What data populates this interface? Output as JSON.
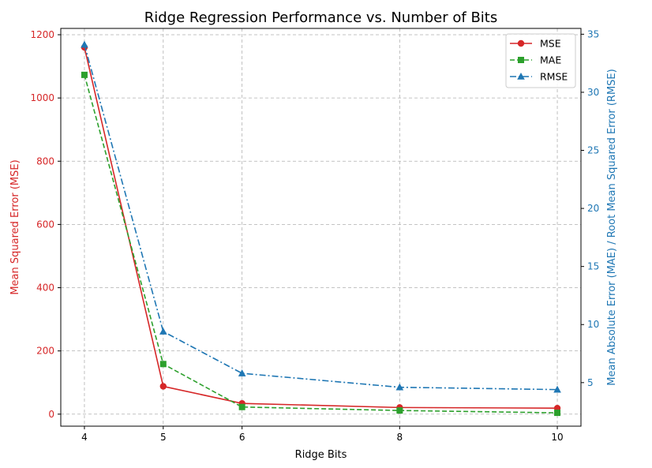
{
  "chart_data": {
    "type": "line",
    "title": "Ridge Regression Performance vs. Number of Bits",
    "xlabel": "Ridge Bits",
    "ylabel_left": "Mean Squared Error (MSE)",
    "ylabel_right": "Mean Absolute Error (MAE) / Root Mean Squared Error (RMSE)",
    "x": [
      4,
      5,
      6,
      8,
      10
    ],
    "xlim": [
      3.7,
      10.3
    ],
    "x_ticks": [
      4,
      5,
      6,
      8,
      10
    ],
    "ylim_left": [
      -38,
      1220
    ],
    "y_ticks_left": [
      0,
      200,
      400,
      600,
      800,
      1000,
      1200
    ],
    "ylim_right": [
      1.25,
      35.5
    ],
    "y_ticks_right": [
      5,
      10,
      15,
      20,
      25,
      30,
      35
    ],
    "grid": true,
    "legend_position": "top-right",
    "left_axis_color": "#d62728",
    "right_axis_color": "#1f77b4",
    "series": [
      {
        "name": "MSE",
        "axis": "left",
        "color": "#d62728",
        "marker": "circle",
        "linestyle": "solid",
        "values": [
          1160,
          88,
          34,
          21,
          19
        ]
      },
      {
        "name": "MAE",
        "axis": "right",
        "color": "#2ca02c",
        "marker": "square",
        "linestyle": "dashed",
        "values": [
          31.5,
          6.6,
          2.9,
          2.6,
          2.4
        ]
      },
      {
        "name": "RMSE",
        "axis": "right",
        "color": "#1f77b4",
        "marker": "triangle",
        "linestyle": "dashdot",
        "values": [
          34.1,
          9.4,
          5.8,
          4.6,
          4.4
        ]
      }
    ]
  }
}
